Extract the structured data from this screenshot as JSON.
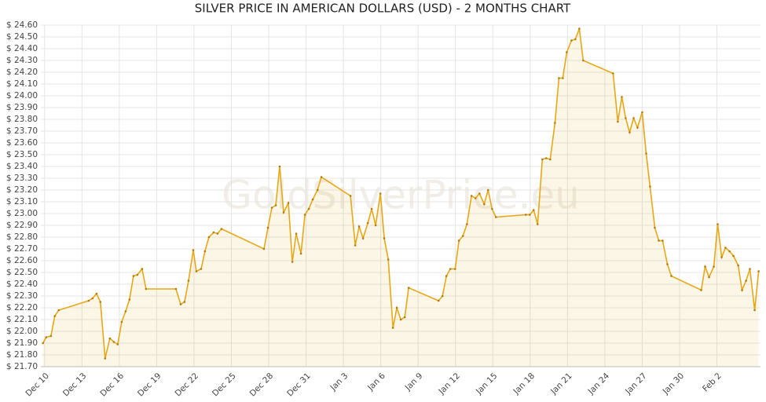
{
  "chart_data": {
    "type": "line",
    "title": "SILVER PRICE IN AMERICAN DOLLARS (USD) - 2 MONTHS CHART",
    "watermark": "GoldSilverPrice.eu",
    "x": [
      -0.13,
      0.13,
      0.51,
      0.82,
      1.14,
      3.54,
      3.85,
      4.17,
      4.48,
      4.86,
      5.24,
      5.56,
      5.87,
      6.19,
      6.51,
      6.82,
      7.14,
      7.45,
      7.83,
      8.15,
      10.55,
      10.93,
      11.24,
      11.56,
      11.94,
      12.19,
      12.57,
      12.88,
      13.2,
      13.58,
      13.89,
      14.21,
      17.62,
      17.94,
      18.25,
      18.57,
      18.88,
      19.2,
      19.58,
      19.9,
      20.21,
      20.59,
      20.91,
      21.22,
      21.54,
      21.92,
      22.23,
      24.57,
      24.95,
      25.26,
      25.58,
      25.96,
      26.27,
      26.59,
      26.97,
      27.28,
      27.6,
      27.98,
      28.29,
      28.61,
      28.93,
      29.24,
      31.64,
      31.96,
      32.27,
      32.59,
      32.97,
      33.28,
      33.6,
      33.92,
      34.29,
      34.61,
      34.93,
      35.31,
      35.62,
      35.94,
      36.25,
      38.65,
      38.97,
      39.28,
      39.6,
      39.98,
      40.29,
      40.61,
      40.99,
      41.31,
      41.62,
      41.94,
      42.32,
      42.63,
      42.95,
      43.26,
      45.66,
      46.04,
      46.36,
      46.67,
      46.99,
      47.31,
      47.62,
      48,
      48.32,
      48.63,
      49.01,
      49.33,
      49.64,
      50.02,
      50.34,
      52.74,
      53.05,
      53.37,
      53.75,
      54.06,
      54.38,
      54.69,
      55.01,
      55.33,
      55.71,
      56.02,
      56.34,
      56.65,
      57.03,
      57.35
    ],
    "series": [
      {
        "name": "Silver",
        "color": "#e6a817",
        "values": [
          21.9,
          21.95,
          21.96,
          22.13,
          22.18,
          22.26,
          22.28,
          22.32,
          22.25,
          21.77,
          21.94,
          21.91,
          21.89,
          22.08,
          22.17,
          22.27,
          22.47,
          22.48,
          22.53,
          22.36,
          22.36,
          22.23,
          22.25,
          22.43,
          22.69,
          22.51,
          22.53,
          22.68,
          22.8,
          22.84,
          22.83,
          22.87,
          22.7,
          22.88,
          23.05,
          23.07,
          23.4,
          23.01,
          23.09,
          22.59,
          22.83,
          22.66,
          22.99,
          23.04,
          23.12,
          23.2,
          23.31,
          23.15,
          22.73,
          22.89,
          22.79,
          22.92,
          23.04,
          22.9,
          23.17,
          22.79,
          22.61,
          22.03,
          22.2,
          22.1,
          22.12,
          22.37,
          22.26,
          22.3,
          22.47,
          22.53,
          22.53,
          22.77,
          22.81,
          22.91,
          23.15,
          23.13,
          23.17,
          23.08,
          23.2,
          23.04,
          22.97,
          22.99,
          22.99,
          23.03,
          22.91,
          23.46,
          23.47,
          23.46,
          23.77,
          24.15,
          24.15,
          24.37,
          24.47,
          24.48,
          24.57,
          24.3,
          24.19,
          23.78,
          23.99,
          23.81,
          23.69,
          23.81,
          23.73,
          23.86,
          23.51,
          23.23,
          22.88,
          22.77,
          22.77,
          22.57,
          22.47,
          22.35,
          22.55,
          22.46,
          22.55,
          22.91,
          22.63,
          22.71,
          22.68,
          22.64,
          22.56,
          22.35,
          22.43,
          22.53,
          22.18,
          22.51
        ]
      }
    ],
    "xlim": [
      -0.3,
      57.5
    ],
    "xticks": [
      {
        "value": 0,
        "label": "Dec 10"
      },
      {
        "value": 3,
        "label": "Dec 13"
      },
      {
        "value": 6,
        "label": "Dec 16"
      },
      {
        "value": 9,
        "label": "Dec 19"
      },
      {
        "value": 12,
        "label": "Dec 22"
      },
      {
        "value": 15,
        "label": "Dec 25"
      },
      {
        "value": 18,
        "label": "Dec 28"
      },
      {
        "value": 21,
        "label": "Dec 31"
      },
      {
        "value": 24,
        "label": "Jan 3"
      },
      {
        "value": 27,
        "label": "Jan 6"
      },
      {
        "value": 30,
        "label": "Jan 9"
      },
      {
        "value": 33,
        "label": "Jan 12"
      },
      {
        "value": 36,
        "label": "Jan 15"
      },
      {
        "value": 39,
        "label": "Jan 18"
      },
      {
        "value": 42,
        "label": "Jan 21"
      },
      {
        "value": 45,
        "label": "Jan 24"
      },
      {
        "value": 48,
        "label": "Jan 27"
      },
      {
        "value": 51,
        "label": "Jan 30"
      },
      {
        "value": 54,
        "label": "Feb 2"
      }
    ],
    "ylim": [
      21.7,
      24.6
    ],
    "yticks": [
      {
        "value": 21.7,
        "label": "$ 21.70"
      },
      {
        "value": 21.8,
        "label": "$ 21.80"
      },
      {
        "value": 21.9,
        "label": "$ 21.90"
      },
      {
        "value": 22.0,
        "label": "$ 22.00"
      },
      {
        "value": 22.1,
        "label": "$ 22.10"
      },
      {
        "value": 22.2,
        "label": "$ 22.20"
      },
      {
        "value": 22.3,
        "label": "$ 22.30"
      },
      {
        "value": 22.4,
        "label": "$ 22.40"
      },
      {
        "value": 22.5,
        "label": "$ 22.50"
      },
      {
        "value": 22.6,
        "label": "$ 22.60"
      },
      {
        "value": 22.7,
        "label": "$ 22.70"
      },
      {
        "value": 22.8,
        "label": "$ 22.80"
      },
      {
        "value": 22.9,
        "label": "$ 22.90"
      },
      {
        "value": 23.0,
        "label": "$ 23.00"
      },
      {
        "value": 23.1,
        "label": "$ 23.10"
      },
      {
        "value": 23.2,
        "label": "$ 23.20"
      },
      {
        "value": 23.3,
        "label": "$ 23.30"
      },
      {
        "value": 23.4,
        "label": "$ 23.40"
      },
      {
        "value": 23.5,
        "label": "$ 23.50"
      },
      {
        "value": 23.6,
        "label": "$ 23.60"
      },
      {
        "value": 23.7,
        "label": "$ 23.70"
      },
      {
        "value": 23.8,
        "label": "$ 23.80"
      },
      {
        "value": 23.9,
        "label": "$ 23.90"
      },
      {
        "value": 24.0,
        "label": "$ 24.00"
      },
      {
        "value": 24.1,
        "label": "$ 24.10"
      },
      {
        "value": 24.2,
        "label": "$ 24.20"
      },
      {
        "value": 24.3,
        "label": "$ 24.30"
      },
      {
        "value": 24.4,
        "label": "$ 24.40"
      },
      {
        "value": 24.5,
        "label": "$ 24.50"
      },
      {
        "value": 24.6,
        "label": "$ 24.60"
      }
    ],
    "grid": true
  }
}
